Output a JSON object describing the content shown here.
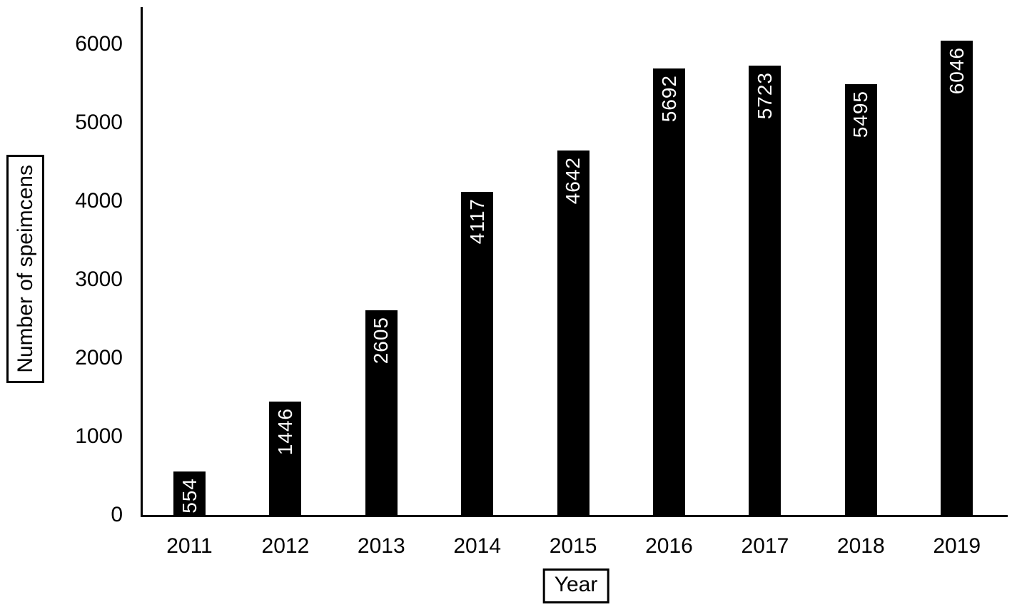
{
  "chart_data": {
    "type": "bar",
    "title": "",
    "categories": [
      "2011",
      "2012",
      "2013",
      "2014",
      "2015",
      "2016",
      "2017",
      "2018",
      "2019"
    ],
    "values": [
      554,
      1446,
      2605,
      4117,
      4642,
      5692,
      5723,
      5495,
      6046
    ],
    "xlabel": "Year",
    "ylabel": "Number of speimcens",
    "ylim": [
      0,
      6000
    ],
    "yticks": [
      0,
      1000,
      2000,
      3000,
      4000,
      5000,
      6000
    ],
    "bar_color": "#000000",
    "bar_label_color": "#ffffff",
    "axis_color": "#000000",
    "text_color": "#000000",
    "background_color": "#ffffff",
    "grid": false,
    "legend_position": "none",
    "bar_label_position": "inside-end",
    "bar_label_rotation": "vertical-bottom-to-top"
  }
}
